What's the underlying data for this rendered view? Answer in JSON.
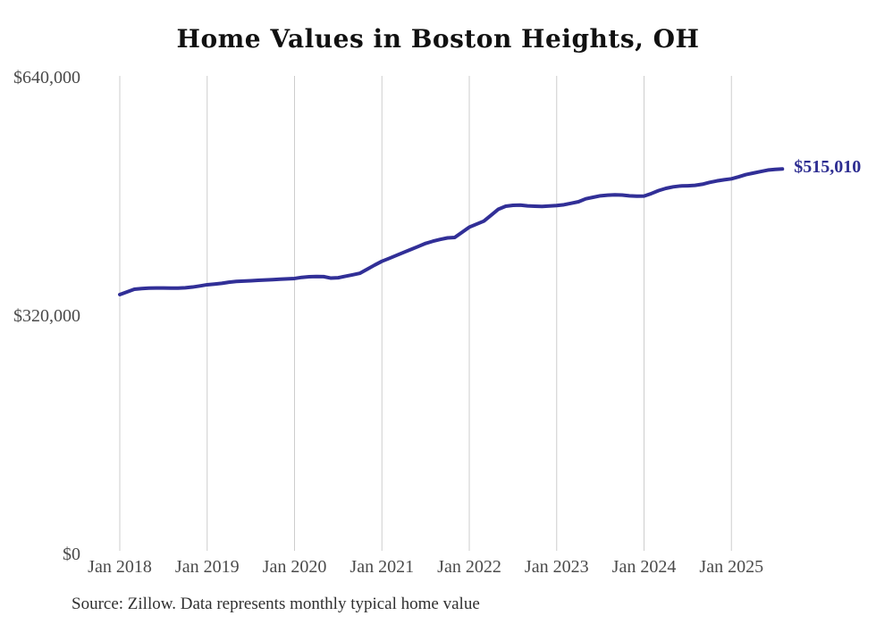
{
  "title": "Home Values in Boston Heights, OH",
  "source_note": "Source: Zillow. Data represents monthly typical home value",
  "colors": {
    "line": "#312f97",
    "end_label_text": "#2d2d91",
    "gridline": "#cdcdcd",
    "axis_text": "#4a4a4a",
    "title_text": "#111111",
    "source_text": "#303030",
    "background": "#ffffff"
  },
  "chart_data": {
    "type": "line",
    "title": "Home Values in Boston Heights, OH",
    "series_name": "Monthly typical home value",
    "x_start_month": "Jan 2018",
    "x_end_month": "Aug 2025",
    "x_tick_labels": [
      "Jan 2018",
      "Jan 2019",
      "Jan 2020",
      "Jan 2021",
      "Jan 2022",
      "Jan 2023",
      "Jan 2024",
      "Jan 2025"
    ],
    "y_ticks": [
      {
        "label": "$0",
        "value": 0
      },
      {
        "label": "$320,000",
        "value": 320000
      },
      {
        "label": "$640,000",
        "value": 640000
      }
    ],
    "ylim": [
      0,
      640000
    ],
    "grid": "vertical-only",
    "legend": "none",
    "end_label": "$515,010",
    "final_value": 515010,
    "values": [
      346400,
      350000,
      353500,
      354500,
      355000,
      355200,
      355200,
      355100,
      355000,
      355500,
      356500,
      358000,
      359600,
      360500,
      361500,
      363000,
      364000,
      364500,
      365000,
      365500,
      366000,
      366500,
      367000,
      367500,
      368000,
      369500,
      370300,
      370700,
      370500,
      368500,
      369000,
      371000,
      373000,
      375100,
      380500,
      386000,
      391100,
      395000,
      399000,
      403100,
      407000,
      411000,
      415100,
      418000,
      420500,
      422500,
      423100,
      430000,
      436900,
      441000,
      445000,
      453000,
      461000,
      465000,
      466200,
      466500,
      465500,
      465000,
      464700,
      465300,
      465900,
      467000,
      469000,
      471000,
      475000,
      477000,
      479000,
      479800,
      480300,
      480000,
      479000,
      478500,
      478600,
      482000,
      486000,
      489000,
      491000,
      492200,
      492500,
      493000,
      494500,
      497000,
      499000,
      500500,
      501800,
      504500,
      507500,
      509500,
      511500,
      513500,
      514500,
      515010
    ]
  }
}
